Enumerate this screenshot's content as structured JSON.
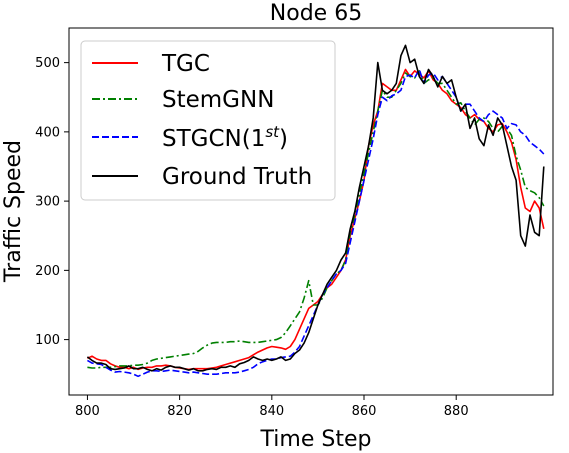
{
  "chart_data": {
    "type": "line",
    "title": "Node 65",
    "xlabel": "Time Step",
    "ylabel": "Traffic Speed",
    "xlim": [
      796,
      901
    ],
    "ylim": [
      20,
      550
    ],
    "xticks": [
      800,
      820,
      840,
      860,
      880
    ],
    "yticks": [
      100,
      200,
      300,
      400,
      500
    ],
    "grid": false,
    "legend_position": "top-left",
    "series": [
      {
        "name": "TGC",
        "color": "#ff0000",
        "dash": "solid",
        "x": [
          800,
          801,
          802,
          803,
          804,
          805,
          806,
          807,
          808,
          809,
          810,
          811,
          812,
          813,
          814,
          815,
          816,
          817,
          818,
          819,
          820,
          821,
          822,
          823,
          824,
          825,
          826,
          827,
          828,
          829,
          830,
          831,
          832,
          833,
          834,
          835,
          836,
          837,
          838,
          839,
          840,
          841,
          842,
          843,
          844,
          845,
          846,
          847,
          848,
          849,
          850,
          851,
          852,
          853,
          854,
          855,
          856,
          857,
          858,
          859,
          860,
          861,
          862,
          863,
          864,
          865,
          866,
          867,
          868,
          869,
          870,
          871,
          872,
          873,
          874,
          875,
          876,
          877,
          878,
          879,
          880,
          881,
          882,
          883,
          884,
          885,
          886,
          887,
          888,
          889,
          890,
          891,
          892,
          893,
          894,
          895,
          896,
          897,
          898,
          899
        ],
        "values": [
          73,
          76,
          72,
          70,
          70,
          65,
          62,
          60,
          60,
          58,
          60,
          57,
          59,
          60,
          60,
          62,
          62,
          63,
          62,
          60,
          59,
          58,
          57,
          58,
          58,
          58,
          58,
          59,
          60,
          62,
          64,
          66,
          68,
          70,
          72,
          74,
          78,
          82,
          85,
          88,
          90,
          89,
          88,
          86,
          90,
          100,
          115,
          130,
          145,
          150,
          155,
          165,
          175,
          180,
          190,
          200,
          215,
          250,
          275,
          300,
          330,
          380,
          410,
          430,
          470,
          465,
          460,
          460,
          475,
          490,
          480,
          488,
          483,
          478,
          488,
          475,
          470,
          460,
          455,
          445,
          440,
          435,
          425,
          420,
          425,
          418,
          415,
          405,
          400,
          410,
          412,
          400,
          385,
          360,
          320,
          290,
          285,
          300,
          290,
          260
        ]
      },
      {
        "name": "StemGNN",
        "color": "#008000",
        "dash": "dashdot",
        "x": [
          800,
          801,
          802,
          803,
          804,
          805,
          806,
          807,
          808,
          809,
          810,
          811,
          812,
          813,
          814,
          815,
          816,
          817,
          818,
          819,
          820,
          821,
          822,
          823,
          824,
          825,
          826,
          827,
          828,
          829,
          830,
          831,
          832,
          833,
          834,
          835,
          836,
          837,
          838,
          839,
          840,
          841,
          842,
          843,
          844,
          845,
          846,
          847,
          848,
          849,
          850,
          851,
          852,
          853,
          854,
          855,
          856,
          857,
          858,
          859,
          860,
          861,
          862,
          863,
          864,
          865,
          866,
          867,
          868,
          869,
          870,
          871,
          872,
          873,
          874,
          875,
          876,
          877,
          878,
          879,
          880,
          881,
          882,
          883,
          884,
          885,
          886,
          887,
          888,
          889,
          890,
          891,
          892,
          893,
          894,
          895,
          896,
          897,
          898,
          899
        ],
        "values": [
          60,
          59,
          59,
          60,
          60,
          60,
          61,
          62,
          62,
          62,
          63,
          63,
          64,
          66,
          70,
          72,
          73,
          74,
          75,
          76,
          77,
          78,
          79,
          80,
          83,
          88,
          92,
          95,
          96,
          96,
          96,
          97,
          97,
          98,
          97,
          96,
          96,
          96,
          97,
          98,
          99,
          100,
          103,
          110,
          120,
          130,
          140,
          160,
          185,
          150,
          150,
          160,
          175,
          185,
          195,
          200,
          215,
          255,
          280,
          310,
          340,
          370,
          400,
          430,
          460,
          450,
          450,
          460,
          470,
          485,
          480,
          478,
          488,
          470,
          475,
          478,
          470,
          470,
          460,
          450,
          440,
          442,
          430,
          420,
          410,
          418,
          420,
          415,
          405,
          400,
          408,
          405,
          395,
          365,
          345,
          320,
          315,
          312,
          305,
          293
        ]
      },
      {
        "name": "STGCN(1^st)",
        "color": "#0000ff",
        "dash": "dashed",
        "x": [
          800,
          801,
          802,
          803,
          804,
          805,
          806,
          807,
          808,
          809,
          810,
          811,
          812,
          813,
          814,
          815,
          816,
          817,
          818,
          819,
          820,
          821,
          822,
          823,
          824,
          825,
          826,
          827,
          828,
          829,
          830,
          831,
          832,
          833,
          834,
          835,
          836,
          837,
          838,
          839,
          840,
          841,
          842,
          843,
          844,
          845,
          846,
          847,
          848,
          849,
          850,
          851,
          852,
          853,
          854,
          855,
          856,
          857,
          858,
          859,
          860,
          861,
          862,
          863,
          864,
          865,
          866,
          867,
          868,
          869,
          870,
          871,
          872,
          873,
          874,
          875,
          876,
          877,
          878,
          879,
          880,
          881,
          882,
          883,
          884,
          885,
          886,
          887,
          888,
          889,
          890,
          891,
          892,
          893,
          894,
          895,
          896,
          897,
          898,
          899
        ],
        "values": [
          70,
          66,
          65,
          64,
          60,
          56,
          53,
          54,
          53,
          52,
          50,
          47,
          50,
          53,
          55,
          55,
          54,
          55,
          56,
          55,
          54,
          53,
          52,
          53,
          52,
          51,
          50,
          50,
          50,
          51,
          52,
          52,
          52,
          53,
          55,
          57,
          60,
          65,
          68,
          70,
          72,
          72,
          74,
          75,
          76,
          82,
          90,
          105,
          120,
          135,
          150,
          165,
          175,
          185,
          195,
          200,
          210,
          240,
          270,
          300,
          330,
          360,
          390,
          425,
          450,
          445,
          452,
          455,
          460,
          480,
          482,
          478,
          490,
          470,
          482,
          485,
          475,
          480,
          470,
          460,
          450,
          430,
          440,
          440,
          430,
          420,
          415,
          425,
          430,
          425,
          420,
          405,
          412,
          410,
          400,
          395,
          385,
          380,
          375,
          368
        ]
      },
      {
        "name": "Ground Truth",
        "color": "#000000",
        "dash": "solid",
        "x": [
          800,
          801,
          802,
          803,
          804,
          805,
          806,
          807,
          808,
          809,
          810,
          811,
          812,
          813,
          814,
          815,
          816,
          817,
          818,
          819,
          820,
          821,
          822,
          823,
          824,
          825,
          826,
          827,
          828,
          829,
          830,
          831,
          832,
          833,
          834,
          835,
          836,
          837,
          838,
          839,
          840,
          841,
          842,
          843,
          844,
          845,
          846,
          847,
          848,
          849,
          850,
          851,
          852,
          853,
          854,
          855,
          856,
          857,
          858,
          859,
          860,
          861,
          862,
          863,
          864,
          865,
          866,
          867,
          868,
          869,
          870,
          871,
          872,
          873,
          874,
          875,
          876,
          877,
          878,
          879,
          880,
          881,
          882,
          883,
          884,
          885,
          886,
          887,
          888,
          889,
          890,
          891,
          892,
          893,
          894,
          895,
          896,
          897,
          898,
          899
        ],
        "values": [
          75,
          70,
          66,
          66,
          64,
          58,
          57,
          58,
          59,
          62,
          58,
          58,
          60,
          57,
          55,
          58,
          56,
          60,
          62,
          60,
          60,
          58,
          56,
          58,
          55,
          55,
          57,
          58,
          57,
          60,
          60,
          62,
          60,
          65,
          67,
          70,
          75,
          72,
          70,
          72,
          70,
          72,
          75,
          70,
          72,
          80,
          85,
          95,
          110,
          130,
          150,
          165,
          180,
          190,
          200,
          215,
          225,
          260,
          285,
          320,
          350,
          380,
          420,
          500,
          460,
          455,
          460,
          470,
          510,
          525,
          500,
          505,
          480,
          470,
          490,
          480,
          465,
          480,
          470,
          475,
          450,
          430,
          440,
          405,
          420,
          390,
          380,
          410,
          395,
          420,
          410,
          380,
          350,
          330,
          250,
          235,
          280,
          255,
          250,
          350
        ]
      }
    ]
  }
}
